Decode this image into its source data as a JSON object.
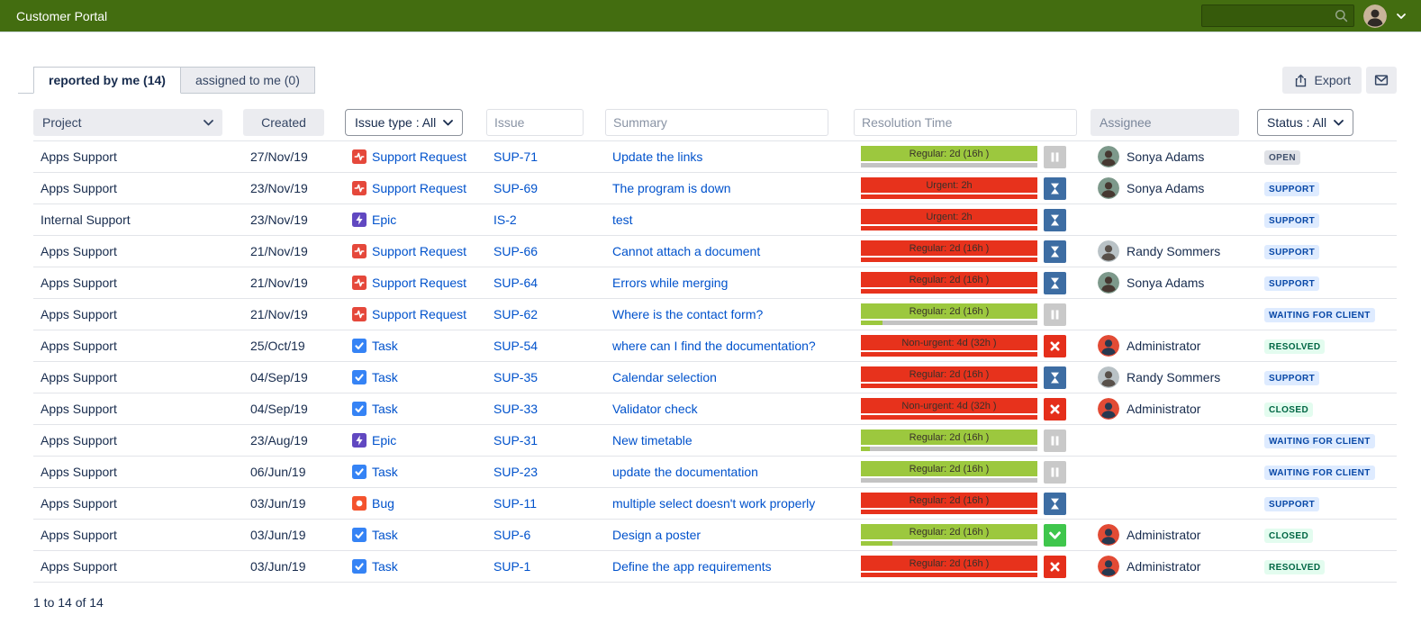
{
  "topbar": {
    "title": "Customer Portal",
    "search_value": ""
  },
  "tabs": [
    {
      "label": "reported by me (14)",
      "active": true
    },
    {
      "label": "assigned to me (0)",
      "active": false
    }
  ],
  "toolbar": {
    "export_label": "Export"
  },
  "filters": {
    "project_label": "Project",
    "created_label": "Created",
    "issue_type_label": "Issue type : All",
    "issue_placeholder": "Issue",
    "summary_placeholder": "Summary",
    "resolution_placeholder": "Resolution Time",
    "assignee_label": "Assignee",
    "status_label": "Status : All"
  },
  "rows": [
    {
      "project": "Apps Support",
      "created": "27/Nov/19",
      "type": {
        "label": "Support Request",
        "icon": "support-request"
      },
      "key": "SUP-71",
      "summary": "Update the links",
      "res": {
        "label": "Regular: 2d (16h )",
        "bar": "green",
        "fill_pct": 0,
        "fill": "green",
        "icon": "pause"
      },
      "assignee": {
        "name": "Sonya Adams",
        "avatar": "sonya"
      },
      "status": {
        "label": "OPEN",
        "kind": "gray"
      }
    },
    {
      "project": "Apps Support",
      "created": "23/Nov/19",
      "type": {
        "label": "Support Request",
        "icon": "support-request"
      },
      "key": "SUP-69",
      "summary": "The program is down",
      "res": {
        "label": "Urgent: 2h",
        "bar": "red",
        "fill_pct": 100,
        "fill": "red",
        "icon": "hourglass"
      },
      "assignee": {
        "name": "Sonya Adams",
        "avatar": "sonya"
      },
      "status": {
        "label": "SUPPORT",
        "kind": "blue"
      }
    },
    {
      "project": "Internal Support",
      "created": "23/Nov/19",
      "type": {
        "label": "Epic",
        "icon": "epic"
      },
      "key": "IS-2",
      "summary": "test",
      "res": {
        "label": "Urgent: 2h",
        "bar": "red",
        "fill_pct": 100,
        "fill": "red",
        "icon": "hourglass"
      },
      "assignee": null,
      "status": {
        "label": "SUPPORT",
        "kind": "blue"
      }
    },
    {
      "project": "Apps Support",
      "created": "21/Nov/19",
      "type": {
        "label": "Support Request",
        "icon": "support-request"
      },
      "key": "SUP-66",
      "summary": "Cannot attach a document",
      "res": {
        "label": "Regular: 2d (16h )",
        "bar": "red",
        "fill_pct": 100,
        "fill": "red",
        "icon": "hourglass"
      },
      "assignee": {
        "name": "Randy Sommers",
        "avatar": "randy"
      },
      "status": {
        "label": "SUPPORT",
        "kind": "blue"
      }
    },
    {
      "project": "Apps Support",
      "created": "21/Nov/19",
      "type": {
        "label": "Support Request",
        "icon": "support-request"
      },
      "key": "SUP-64",
      "summary": "Errors while merging",
      "res": {
        "label": "Regular: 2d (16h )",
        "bar": "red",
        "fill_pct": 100,
        "fill": "red",
        "icon": "hourglass"
      },
      "assignee": {
        "name": "Sonya Adams",
        "avatar": "sonya"
      },
      "status": {
        "label": "SUPPORT",
        "kind": "blue"
      }
    },
    {
      "project": "Apps Support",
      "created": "21/Nov/19",
      "type": {
        "label": "Support Request",
        "icon": "support-request"
      },
      "key": "SUP-62",
      "summary": "Where is the contact form?",
      "res": {
        "label": "Regular: 2d (16h )",
        "bar": "green",
        "fill_pct": 12,
        "fill": "green",
        "icon": "pause"
      },
      "assignee": null,
      "status": {
        "label": "WAITING FOR CLIENT",
        "kind": "blue"
      }
    },
    {
      "project": "Apps Support",
      "created": "25/Oct/19",
      "type": {
        "label": "Task",
        "icon": "task"
      },
      "key": "SUP-54",
      "summary": "where can I find the documentation?",
      "res": {
        "label": "Non-urgent: 4d (32h )",
        "bar": "red",
        "fill_pct": 100,
        "fill": "red",
        "icon": "x"
      },
      "assignee": {
        "name": "Administrator",
        "avatar": "admin"
      },
      "status": {
        "label": "RESOLVED",
        "kind": "green"
      }
    },
    {
      "project": "Apps Support",
      "created": "04/Sep/19",
      "type": {
        "label": "Task",
        "icon": "task"
      },
      "key": "SUP-35",
      "summary": "Calendar selection",
      "res": {
        "label": "Regular: 2d (16h )",
        "bar": "red",
        "fill_pct": 100,
        "fill": "red",
        "icon": "hourglass"
      },
      "assignee": {
        "name": "Randy Sommers",
        "avatar": "randy"
      },
      "status": {
        "label": "SUPPORT",
        "kind": "blue"
      }
    },
    {
      "project": "Apps Support",
      "created": "04/Sep/19",
      "type": {
        "label": "Task",
        "icon": "task"
      },
      "key": "SUP-33",
      "summary": "Validator check",
      "res": {
        "label": "Non-urgent: 4d (32h )",
        "bar": "red",
        "fill_pct": 100,
        "fill": "red",
        "icon": "x"
      },
      "assignee": {
        "name": "Administrator",
        "avatar": "admin"
      },
      "status": {
        "label": "CLOSED",
        "kind": "green"
      }
    },
    {
      "project": "Apps Support",
      "created": "23/Aug/19",
      "type": {
        "label": "Epic",
        "icon": "epic"
      },
      "key": "SUP-31",
      "summary": "New timetable",
      "res": {
        "label": "Regular: 2d (16h )",
        "bar": "green",
        "fill_pct": 5,
        "fill": "green",
        "icon": "pause"
      },
      "assignee": null,
      "status": {
        "label": "WAITING FOR CLIENT",
        "kind": "blue"
      }
    },
    {
      "project": "Apps Support",
      "created": "06/Jun/19",
      "type": {
        "label": "Task",
        "icon": "task"
      },
      "key": "SUP-23",
      "summary": "update the documentation",
      "res": {
        "label": "Regular: 2d (16h )",
        "bar": "green",
        "fill_pct": 0,
        "fill": "green",
        "icon": "pause"
      },
      "assignee": null,
      "status": {
        "label": "WAITING FOR CLIENT",
        "kind": "blue"
      }
    },
    {
      "project": "Apps Support",
      "created": "03/Jun/19",
      "type": {
        "label": "Bug",
        "icon": "bug"
      },
      "key": "SUP-11",
      "summary": "multiple select doesn't work properly",
      "res": {
        "label": "Regular: 2d (16h )",
        "bar": "red",
        "fill_pct": 100,
        "fill": "red",
        "icon": "hourglass"
      },
      "assignee": null,
      "status": {
        "label": "SUPPORT",
        "kind": "blue"
      }
    },
    {
      "project": "Apps Support",
      "created": "03/Jun/19",
      "type": {
        "label": "Task",
        "icon": "task"
      },
      "key": "SUP-6",
      "summary": "Design a poster",
      "res": {
        "label": "Regular: 2d (16h )",
        "bar": "green",
        "fill_pct": 18,
        "fill": "green",
        "icon": "check"
      },
      "assignee": {
        "name": "Administrator",
        "avatar": "admin"
      },
      "status": {
        "label": "CLOSED",
        "kind": "green"
      }
    },
    {
      "project": "Apps Support",
      "created": "03/Jun/19",
      "type": {
        "label": "Task",
        "icon": "task"
      },
      "key": "SUP-1",
      "summary": "Define the app requirements",
      "res": {
        "label": "Regular: 2d (16h )",
        "bar": "red",
        "fill_pct": 100,
        "fill": "red",
        "icon": "x"
      },
      "assignee": {
        "name": "Administrator",
        "avatar": "admin"
      },
      "status": {
        "label": "RESOLVED",
        "kind": "green"
      }
    }
  ],
  "footer": {
    "count_text": "1 to 14 of 14"
  },
  "colors": {
    "topbar-bg": "#436d10",
    "topbar-search-bg": "#365a0b",
    "text": "#172b4d",
    "link": "#0052cc",
    "chip-bg": "#ebecf0",
    "chip-fg": "#344563",
    "bar-green": "#9cc83e",
    "bar-red": "#e7321c",
    "track-gray": "#c3c3c3",
    "icon-pause-bg": "#c9c9c9",
    "icon-hourglass-bg": "#3d6da3",
    "icon-x-bg": "#e52f1b",
    "icon-check-bg": "#3fc64c",
    "lz-gray-bg": "#dfe1e6",
    "lz-gray-fg": "#42526e",
    "lz-blue-bg": "#deebff",
    "lz-blue-fg": "#0747a6",
    "lz-green-bg": "#e3fcef",
    "lz-green-fg": "#006644"
  },
  "type_colors": {
    "support-request": "#e5483b",
    "task": "#3583f5",
    "epic": "#6148c1",
    "bug": "#f4532e"
  },
  "avatars": {
    "sonya": {
      "bg": "#7d998b",
      "fg": "#463831"
    },
    "randy": {
      "bg": "#b9c2c6",
      "fg": "#58504a"
    },
    "admin": {
      "bg": "#e24b35",
      "fg": "#273950"
    },
    "user": {
      "bg": "#c9b49a",
      "fg": "#2f2a26"
    }
  }
}
